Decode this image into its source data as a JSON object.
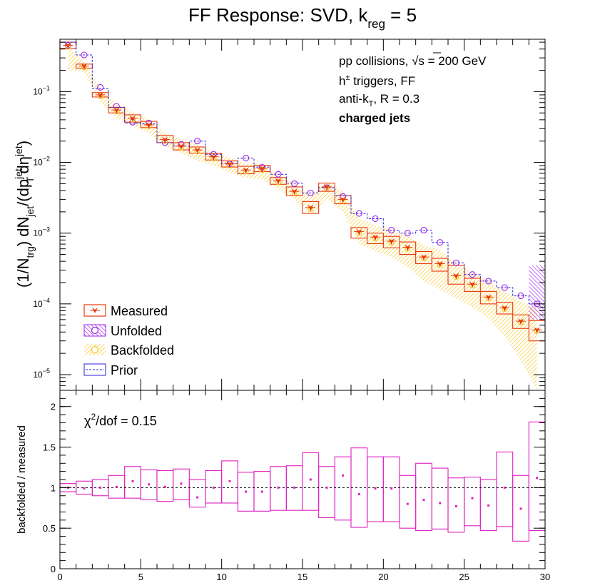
{
  "title": {
    "main": "FF Response: SVD, k",
    "sub": "reg",
    "tail": " = 5"
  },
  "annotations": {
    "line1_a": "pp collisions, ",
    "line1_sqrt": "√",
    "line1_b": "s = 200 GeV",
    "line2_a": "h",
    "line2_sup": "±",
    "line2_b": " triggers, FF",
    "line3_a": "anti-k",
    "line3_sub": "T",
    "line3_b": ", R = 0.3",
    "line4": "charged jets",
    "chi2_a": "χ",
    "chi2_sup": "2",
    "chi2_b": "/dof = 0.15"
  },
  "top_ylabel": {
    "p1": "(1/N",
    "p1_sub": "trg",
    "p2": ") dN",
    "p2_sub": "jet",
    "p3": "/(dp",
    "p3_sup": "jet",
    "p3_sub": "T",
    "p4": "dη",
    "p4_sup": "jet",
    "p5": ")"
  },
  "bottom_ylabel": "backfolded / measured",
  "legend": [
    {
      "label": "Measured",
      "color": "#e8380d"
    },
    {
      "label": "Unfolded",
      "color": "#a020f0"
    },
    {
      "label": "Backfolded",
      "color": "#f5c518"
    },
    {
      "label": "Prior",
      "color": "#2a1fd1"
    }
  ],
  "colors": {
    "measured": "#e8380d",
    "unfolded": "#a020f0",
    "backfolded": "#f5c518",
    "prior": "#2a1fd1",
    "ratio": "#e020c0"
  },
  "chart_data": [
    {
      "type": "scatter",
      "yscale": "log",
      "xlim": [
        0,
        30
      ],
      "ylim": [
        6e-06,
        0.55
      ],
      "y_ticks": [
        {
          "v": 0.1,
          "b": "10",
          "e": "−1"
        },
        {
          "v": 0.01,
          "b": "10",
          "e": "−2"
        },
        {
          "v": 0.001,
          "b": "10",
          "e": "−3"
        },
        {
          "v": 0.0001,
          "b": "10",
          "e": "−4"
        },
        {
          "v": 1e-05,
          "b": "10",
          "e": "−5"
        }
      ],
      "bin_centers": [
        0.5,
        1.5,
        2.5,
        3.5,
        4.5,
        5.5,
        6.5,
        7.5,
        8.5,
        9.5,
        10.5,
        11.5,
        12.5,
        13.5,
        14.5,
        15.5,
        16.5,
        17.5,
        18.5,
        19.5,
        20.5,
        21.5,
        22.5,
        23.5,
        24.5,
        25.5,
        26.5,
        27.5,
        28.5,
        29.5
      ],
      "measured": [
        0.45,
        0.23,
        0.09,
        0.055,
        0.042,
        0.034,
        0.021,
        0.017,
        0.015,
        0.012,
        0.0095,
        0.0078,
        0.0082,
        0.0055,
        0.0039,
        0.0023,
        0.0045,
        0.003,
        0.00105,
        0.00088,
        0.00077,
        0.00063,
        0.00046,
        0.00037,
        0.00025,
        0.00019,
        0.000125,
        8.8e-05,
        5.7e-05,
        4.3e-05
      ],
      "measured_syst_lo": [
        0.41,
        0.215,
        0.084,
        0.05,
        0.037,
        0.031,
        0.019,
        0.015,
        0.0135,
        0.0108,
        0.0086,
        0.0069,
        0.0074,
        0.0049,
        0.0034,
        0.0019,
        0.0039,
        0.0026,
        0.00085,
        0.00071,
        0.00062,
        0.0005,
        0.00037,
        0.00029,
        0.00019,
        0.00015,
        0.0001,
        7.2e-05,
        4.5e-05,
        3e-05
      ],
      "measured_syst_hi": [
        0.5,
        0.245,
        0.097,
        0.06,
        0.047,
        0.038,
        0.024,
        0.019,
        0.0165,
        0.0134,
        0.0105,
        0.0088,
        0.0091,
        0.0061,
        0.0045,
        0.0028,
        0.0051,
        0.0034,
        0.0012,
        0.001,
        0.0009,
        0.00075,
        0.00055,
        0.00044,
        0.00035,
        0.00023,
        0.00015,
        0.000105,
        7e-05,
        5.8e-05
      ],
      "unfolded": [
        0.45,
        0.33,
        0.115,
        0.062,
        0.037,
        0.036,
        0.019,
        0.018,
        0.02,
        0.013,
        0.0095,
        0.0115,
        0.0085,
        0.0068,
        0.005,
        0.0037,
        0.0044,
        0.0033,
        0.0019,
        0.0016,
        0.0011,
        0.001,
        0.0011,
        0.00074,
        0.00038,
        0.00026,
        0.00021,
        0.00017,
        0.00013,
        0.0001
      ],
      "backfolded": [
        0.45,
        0.23,
        0.09,
        0.055,
        0.042,
        0.034,
        0.021,
        0.017,
        0.015,
        0.012,
        0.0095,
        0.0078,
        0.0082,
        0.0055,
        0.0039,
        0.0023,
        0.0045,
        0.003,
        0.00105,
        0.00088,
        0.00077,
        0.00063,
        0.00046,
        0.00037,
        0.00025,
        0.00019,
        0.000125,
        8.8e-05,
        5.7e-05,
        4.3e-05
      ],
      "backfolded_band_lo": [
        0.2,
        0.19,
        0.07,
        0.043,
        0.033,
        0.026,
        0.0165,
        0.0134,
        0.0105,
        0.009,
        0.0072,
        0.006,
        0.0058,
        0.0042,
        0.003,
        0.0018,
        0.0031,
        0.002,
        0.0007,
        0.00056,
        0.00046,
        0.00033,
        0.00021,
        0.00016,
        0.00012,
        9e-05,
        6.2e-05,
        3.5e-05,
        1.6e-05,
        6e-06
      ],
      "backfolded_band_hi": [
        0.44,
        0.26,
        0.11,
        0.066,
        0.052,
        0.04,
        0.026,
        0.021,
        0.018,
        0.014,
        0.0117,
        0.0096,
        0.0095,
        0.0068,
        0.005,
        0.0033,
        0.0053,
        0.0039,
        0.0016,
        0.0013,
        0.0011,
        0.00092,
        0.00067,
        0.00058,
        0.00038,
        0.00028,
        0.00021,
        0.00015,
        0.00011,
        8.5e-05
      ],
      "prior": [
        0.5,
        0.33,
        0.11,
        0.06,
        0.036,
        0.035,
        0.019,
        0.017,
        0.02,
        0.013,
        0.0096,
        0.0115,
        0.0086,
        0.0068,
        0.0051,
        0.0037,
        0.0044,
        0.0034,
        0.0019,
        0.0016,
        0.0011,
        0.001,
        0.0011,
        0.00074,
        0.00038,
        0.00026,
        0.00021,
        0.00017,
        0.00013,
        0.0001
      ]
    },
    {
      "type": "scatter",
      "xlim": [
        0,
        30
      ],
      "ylim": [
        0,
        2.2
      ],
      "y_ticks": [
        0,
        0.5,
        1,
        1.5,
        2
      ],
      "y_tick_labels": [
        "0",
        "0.5",
        "1",
        "1.5",
        "2"
      ],
      "x_ticks": [
        0,
        5,
        10,
        15,
        20,
        25,
        30
      ],
      "x_tick_labels": [
        "0",
        "5",
        "10",
        "15",
        "20",
        "25",
        "30"
      ],
      "reference": 1,
      "bin_centers": [
        0.5,
        1.5,
        2.5,
        3.5,
        4.5,
        5.5,
        6.5,
        7.5,
        8.5,
        9.5,
        10.5,
        11.5,
        12.5,
        13.5,
        14.5,
        15.5,
        16.5,
        17.5,
        18.5,
        19.5,
        20.5,
        21.5,
        22.5,
        23.5,
        24.5,
        25.5,
        26.5,
        27.5,
        28.5,
        29.5
      ],
      "ratio": [
        1.0,
        0.99,
        1.0,
        1.01,
        1.08,
        1.04,
        1.01,
        1.05,
        0.88,
        1.0,
        1.08,
        0.95,
        0.95,
        1.0,
        1.0,
        1.1,
        1.0,
        1.15,
        0.92,
        0.99,
        0.99,
        0.8,
        0.85,
        0.81,
        0.77,
        0.87,
        0.78,
        1.0,
        0.74,
        1.12
      ],
      "syst_lo": [
        0.95,
        0.92,
        0.9,
        0.87,
        0.87,
        0.85,
        0.83,
        0.85,
        0.76,
        0.81,
        0.81,
        0.71,
        0.71,
        0.72,
        0.72,
        0.72,
        0.63,
        0.6,
        0.51,
        0.58,
        0.58,
        0.5,
        0.47,
        0.49,
        0.45,
        0.53,
        0.47,
        0.52,
        0.34,
        0.47
      ],
      "syst_hi": [
        1.05,
        1.08,
        1.1,
        1.15,
        1.26,
        1.22,
        1.21,
        1.23,
        1.1,
        1.21,
        1.33,
        1.19,
        1.2,
        1.26,
        1.27,
        1.43,
        1.26,
        1.38,
        1.49,
        1.38,
        1.38,
        1.15,
        1.3,
        1.24,
        1.12,
        1.13,
        1.1,
        1.44,
        1.15,
        1.81
      ]
    }
  ]
}
